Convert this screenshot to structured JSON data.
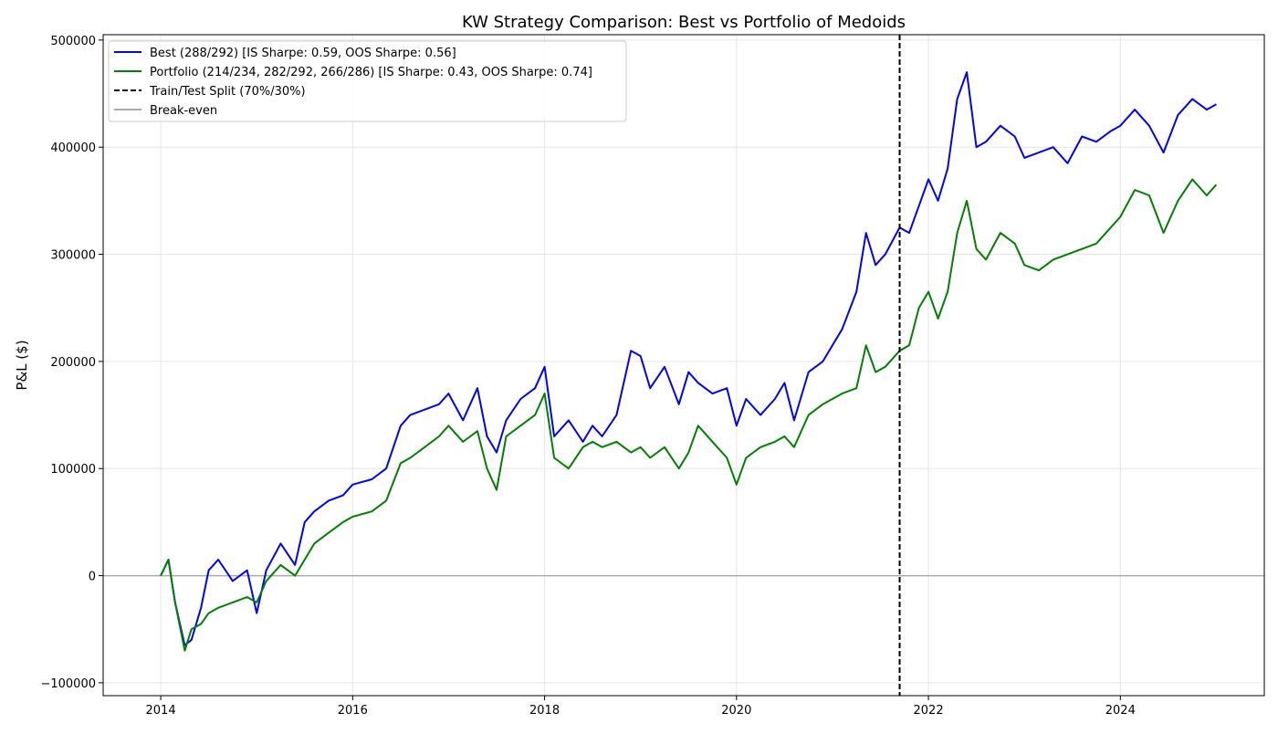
{
  "chart_data": {
    "type": "line",
    "title": "KW Strategy Comparison: Best vs Portfolio of Medoids",
    "xlabel": "",
    "ylabel": "P&L ($)",
    "xlim": [
      2013.4,
      2025.5
    ],
    "ylim": [
      -112000,
      505000
    ],
    "x_ticks": [
      2014,
      2016,
      2018,
      2020,
      2022,
      2024
    ],
    "x_tick_labels": [
      "2014",
      "2016",
      "2018",
      "2020",
      "2022",
      "2024"
    ],
    "y_ticks": [
      -100000,
      0,
      100000,
      200000,
      300000,
      400000,
      500000
    ],
    "y_tick_labels": [
      "−100000",
      "0",
      "100000",
      "200000",
      "300000",
      "400000",
      "500000"
    ],
    "grid": true,
    "legend_position": "top-left",
    "series": [
      {
        "name": "Best (288/292) [IS Sharpe: 0.59, OOS Sharpe: 0.56]",
        "color": "#0000ff",
        "x": [
          2014.0,
          2014.08,
          2014.15,
          2014.25,
          2014.32,
          2014.42,
          2014.5,
          2014.6,
          2014.75,
          2014.9,
          2015.0,
          2015.1,
          2015.25,
          2015.4,
          2015.5,
          2015.6,
          2015.75,
          2015.9,
          2016.0,
          2016.2,
          2016.35,
          2016.5,
          2016.6,
          2016.75,
          2016.9,
          2017.0,
          2017.15,
          2017.3,
          2017.4,
          2017.5,
          2017.6,
          2017.75,
          2017.9,
          2018.0,
          2018.1,
          2018.25,
          2018.4,
          2018.5,
          2018.6,
          2018.75,
          2018.9,
          2019.0,
          2019.1,
          2019.25,
          2019.4,
          2019.5,
          2019.6,
          2019.75,
          2019.9,
          2020.0,
          2020.1,
          2020.25,
          2020.4,
          2020.5,
          2020.6,
          2020.75,
          2020.9,
          2021.0,
          2021.1,
          2021.25,
          2021.35,
          2021.45,
          2021.55,
          2021.7,
          2021.8,
          2021.9,
          2022.0,
          2022.1,
          2022.2,
          2022.3,
          2022.4,
          2022.5,
          2022.6,
          2022.75,
          2022.9,
          2023.0,
          2023.15,
          2023.3,
          2023.45,
          2023.6,
          2023.75,
          2023.9,
          2024.0,
          2024.15,
          2024.3,
          2024.45,
          2024.6,
          2024.75,
          2024.9,
          2025.0
        ],
        "y": [
          0,
          15000,
          -25000,
          -65000,
          -60000,
          -30000,
          5000,
          15000,
          -5000,
          5000,
          -35000,
          5000,
          30000,
          10000,
          50000,
          60000,
          70000,
          75000,
          85000,
          90000,
          100000,
          140000,
          150000,
          155000,
          160000,
          170000,
          145000,
          175000,
          130000,
          115000,
          145000,
          165000,
          175000,
          195000,
          130000,
          145000,
          125000,
          140000,
          130000,
          150000,
          210000,
          205000,
          175000,
          195000,
          160000,
          190000,
          180000,
          170000,
          175000,
          140000,
          165000,
          150000,
          165000,
          180000,
          145000,
          190000,
          200000,
          215000,
          230000,
          265000,
          320000,
          290000,
          300000,
          325000,
          320000,
          345000,
          370000,
          350000,
          380000,
          445000,
          470000,
          400000,
          405000,
          420000,
          410000,
          390000,
          395000,
          400000,
          385000,
          410000,
          405000,
          415000,
          420000,
          435000,
          420000,
          395000,
          430000,
          445000,
          435000,
          440000
        ]
      },
      {
        "name": "Portfolio (214/234, 282/292, 266/286) [IS Sharpe: 0.43, OOS Sharpe: 0.74]",
        "color": "#008000",
        "x": [
          2014.0,
          2014.08,
          2014.15,
          2014.25,
          2014.32,
          2014.42,
          2014.5,
          2014.6,
          2014.75,
          2014.9,
          2015.0,
          2015.1,
          2015.25,
          2015.4,
          2015.5,
          2015.6,
          2015.75,
          2015.9,
          2016.0,
          2016.2,
          2016.35,
          2016.5,
          2016.6,
          2016.75,
          2016.9,
          2017.0,
          2017.15,
          2017.3,
          2017.4,
          2017.5,
          2017.6,
          2017.75,
          2017.9,
          2018.0,
          2018.1,
          2018.25,
          2018.4,
          2018.5,
          2018.6,
          2018.75,
          2018.9,
          2019.0,
          2019.1,
          2019.25,
          2019.4,
          2019.5,
          2019.6,
          2019.75,
          2019.9,
          2020.0,
          2020.1,
          2020.25,
          2020.4,
          2020.5,
          2020.6,
          2020.75,
          2020.9,
          2021.0,
          2021.1,
          2021.25,
          2021.35,
          2021.45,
          2021.55,
          2021.7,
          2021.8,
          2021.9,
          2022.0,
          2022.1,
          2022.2,
          2022.3,
          2022.4,
          2022.5,
          2022.6,
          2022.75,
          2022.9,
          2023.0,
          2023.15,
          2023.3,
          2023.45,
          2023.6,
          2023.75,
          2023.9,
          2024.0,
          2024.15,
          2024.3,
          2024.45,
          2024.6,
          2024.75,
          2024.9,
          2025.0
        ],
        "y": [
          0,
          15000,
          -25000,
          -70000,
          -50000,
          -45000,
          -35000,
          -30000,
          -25000,
          -20000,
          -25000,
          -5000,
          10000,
          0,
          15000,
          30000,
          40000,
          50000,
          55000,
          60000,
          70000,
          105000,
          110000,
          120000,
          130000,
          140000,
          125000,
          135000,
          100000,
          80000,
          130000,
          140000,
          150000,
          170000,
          110000,
          100000,
          120000,
          125000,
          120000,
          125000,
          115000,
          120000,
          110000,
          120000,
          100000,
          115000,
          140000,
          125000,
          110000,
          85000,
          110000,
          120000,
          125000,
          130000,
          120000,
          150000,
          160000,
          165000,
          170000,
          175000,
          215000,
          190000,
          195000,
          210000,
          215000,
          250000,
          265000,
          240000,
          265000,
          320000,
          350000,
          305000,
          295000,
          320000,
          310000,
          290000,
          285000,
          295000,
          300000,
          305000,
          310000,
          325000,
          335000,
          360000,
          355000,
          320000,
          350000,
          370000,
          355000,
          365000
        ]
      }
    ],
    "split_line": {
      "label": "Train/Test Split (70%/30%)",
      "x": 2021.7,
      "color": "#000000"
    },
    "baseline": {
      "label": "Break-even",
      "y": 0,
      "color": "#aaaaaa"
    }
  }
}
